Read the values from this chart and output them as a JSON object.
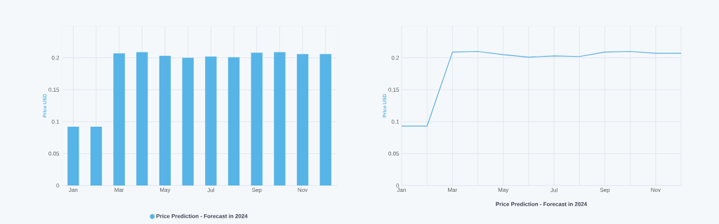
{
  "chart_data": [
    {
      "type": "bar",
      "categories": [
        "Jan",
        null,
        "Mar",
        null,
        "May",
        null,
        "Jul",
        null,
        "Sep",
        null,
        "Nov",
        null
      ],
      "ylabel": "Price USD",
      "ylim": [
        0,
        0.25
      ],
      "yticks": [
        0,
        0.05,
        0.1,
        0.15,
        0.2
      ],
      "grid": true,
      "legend": "bottom",
      "series": [
        {
          "name": "Price Prediction - Forecast in 2024",
          "color": "#56b4e7",
          "values": [
            0.092,
            0.092,
            0.207,
            0.209,
            0.203,
            0.2,
            0.202,
            0.201,
            0.208,
            0.209,
            0.206,
            0.206
          ]
        }
      ]
    },
    {
      "type": "line",
      "categories": [
        "Jan",
        null,
        "Mar",
        null,
        "May",
        null,
        "Jul",
        null,
        "Sep",
        null,
        "Nov",
        null
      ],
      "ylabel": "Price USD",
      "xlabel": "Price Prediction - Forecast in 2024",
      "ylim": [
        0,
        0.25
      ],
      "yticks": [
        0,
        0.05,
        0.1,
        0.15,
        0.2
      ],
      "grid": true,
      "series": [
        {
          "color": "#5aafdf",
          "values": [
            0.093,
            0.093,
            0.209,
            0.21,
            0.205,
            0.201,
            0.203,
            0.202,
            0.209,
            0.21,
            0.207,
            0.207
          ]
        }
      ]
    }
  ]
}
